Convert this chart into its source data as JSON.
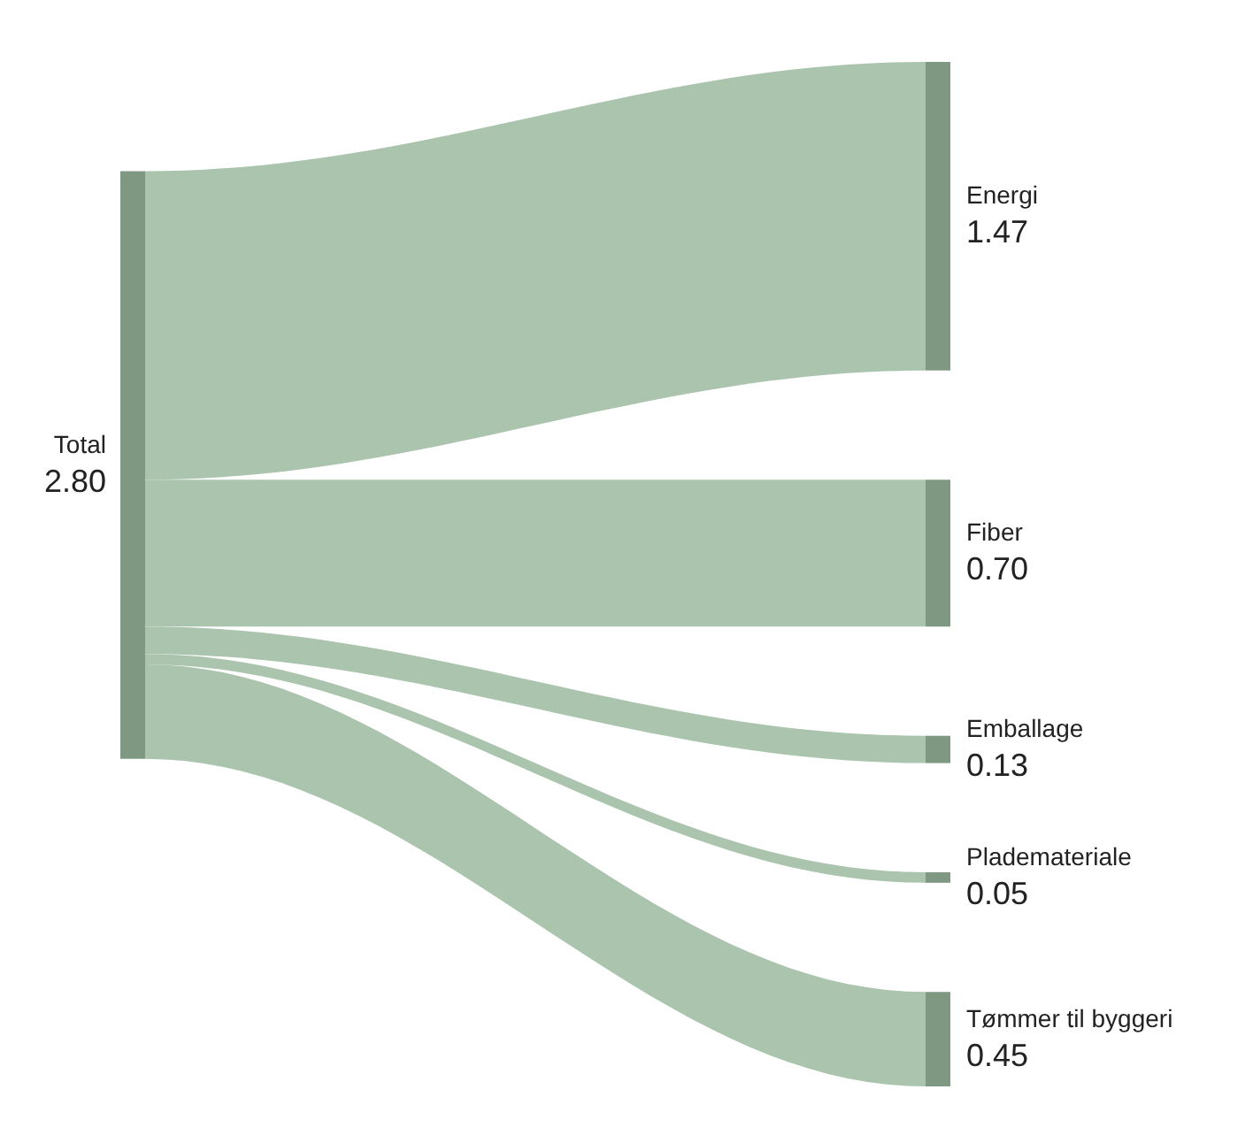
{
  "chart_data": {
    "type": "other",
    "categories": [
      "Total",
      "Energi",
      "Fiber",
      "Emballage",
      "Plademateriale",
      "Tømmer til byggeri"
    ],
    "values": [
      2.8,
      1.47,
      0.7,
      0.13,
      0.05,
      0.45
    ],
    "value_labels": [
      "2.80",
      "1.47",
      "0.70",
      "0.13",
      "0.05",
      "0.45"
    ],
    "color": "#abc4ae",
    "colors": [
      "#7e9882",
      "#7e9882",
      "#7e9882",
      "#7e9882",
      "#7e9882",
      "#7e9882"
    ]
  }
}
